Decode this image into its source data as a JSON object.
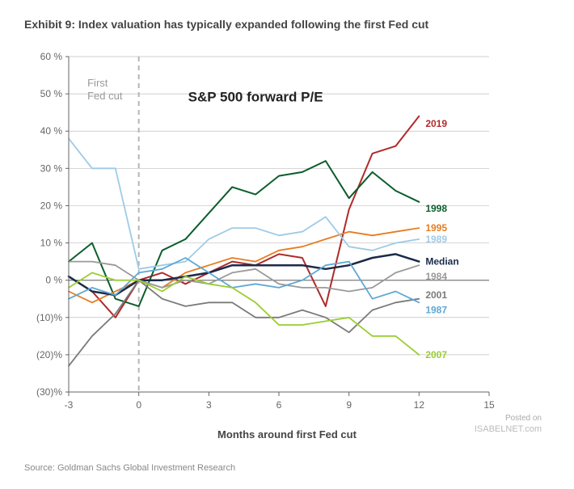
{
  "title": "Exhibit 9: Index valuation has typically expanded following the first Fed cut",
  "chart": {
    "type": "line",
    "chart_title": "S&P 500 forward P/E",
    "xlabel": "Months around first Fed cut",
    "xlim": [
      -3,
      15
    ],
    "ylim": [
      -30,
      60
    ],
    "xtick_step": 3,
    "ytick_step": 10,
    "background_color": "#ffffff",
    "grid_color": "#bfbfbf",
    "axis_color": "#666666",
    "zero_line_color": "#888888",
    "fed_cut_line_color": "#b5b5b5",
    "fed_cut_annotation": "First\nFed cut",
    "title_fontsize": 14,
    "label_fontsize": 13,
    "tick_fontsize": 12,
    "series_label_fontsize": 12,
    "x_values": [
      -3,
      -2,
      -1,
      0,
      1,
      2,
      3,
      4,
      5,
      6,
      7,
      8,
      9,
      10,
      11,
      12
    ],
    "series": [
      {
        "name": "2019",
        "color": "#b02a2a",
        "width": 2.0,
        "y": [
          1,
          -3,
          -10,
          0,
          2,
          -1,
          2,
          5,
          4,
          7,
          6,
          -7,
          19,
          34,
          36,
          44
        ],
        "label_y": 42
      },
      {
        "name": "1998",
        "color": "#0b5d2c",
        "width": 2.0,
        "y": [
          5,
          10,
          -5,
          -7,
          8,
          11,
          18,
          25,
          23,
          28,
          29,
          32,
          22,
          29,
          24,
          21
        ],
        "label_y": 19,
        "label_nudge": -1
      },
      {
        "name": "1995",
        "color": "#e77c22",
        "width": 1.8,
        "y": [
          -3,
          -6,
          -3,
          0,
          -2,
          2,
          4,
          6,
          5,
          8,
          9,
          11,
          13,
          12,
          13,
          14
        ],
        "label_y": 14
      },
      {
        "name": "1989",
        "color": "#9ecbe6",
        "width": 1.8,
        "y": [
          38,
          30,
          30,
          3,
          4,
          5,
          11,
          14,
          14,
          12,
          13,
          17,
          9,
          8,
          10,
          11
        ],
        "label_y": 11
      },
      {
        "name": "Median",
        "color": "#1a2a4a",
        "width": 2.5,
        "y": [
          1,
          -3,
          -4,
          0,
          0,
          1,
          2,
          4,
          4,
          4,
          4,
          3,
          4,
          6,
          7,
          5
        ],
        "label_y": 5
      },
      {
        "name": "1984",
        "color": "#9a9a9a",
        "width": 1.8,
        "y": [
          5,
          5,
          4,
          0,
          -2,
          0,
          -1,
          2,
          3,
          -1,
          -2,
          -2,
          -3,
          -2,
          2,
          4
        ],
        "label_y": 1
      },
      {
        "name": "2001",
        "color": "#7a7a7a",
        "width": 1.8,
        "y": [
          -23,
          -15,
          -9,
          0,
          -5,
          -7,
          -6,
          -6,
          -10,
          -10,
          -8,
          -10,
          -14,
          -8,
          -6,
          -5
        ],
        "label_y": -4
      },
      {
        "name": "1987",
        "color": "#5fa8d3",
        "width": 1.8,
        "y": [
          -5,
          -2,
          -4,
          2,
          3,
          6,
          2,
          -2,
          -1,
          -2,
          0,
          4,
          5,
          -5,
          -3,
          -6
        ],
        "label_y": -8
      },
      {
        "name": "2007",
        "color": "#9acd32",
        "width": 1.8,
        "y": [
          -2,
          2,
          0,
          0,
          -3,
          1,
          -1,
          -2,
          -6,
          -12,
          -12,
          -11,
          -10,
          -15,
          -15,
          -20
        ],
        "label_y": -20
      }
    ]
  },
  "source": "Source: Goldman Sachs Global Investment Research",
  "watermark": {
    "posted": "Posted on",
    "site": "ISABELNET.com"
  }
}
